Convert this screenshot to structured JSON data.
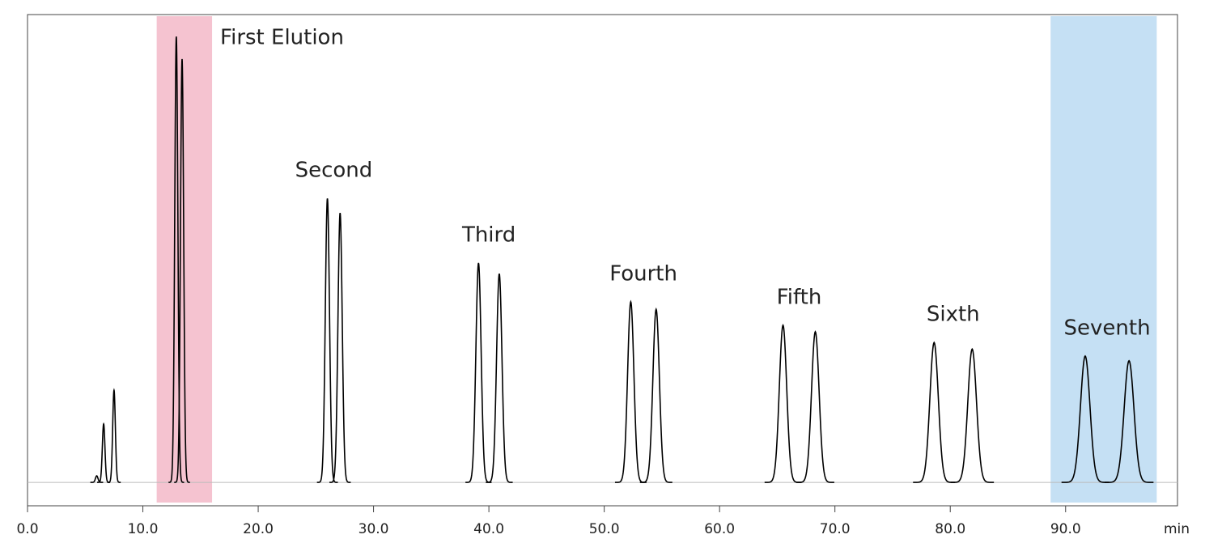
{
  "chart_data": {
    "type": "chromatogram",
    "x_label": "min",
    "xlim": [
      0,
      99.7
    ],
    "ylim": [
      -5,
      100
    ],
    "xticks": [
      {
        "value": 0,
        "label": "0.0"
      },
      {
        "value": 10,
        "label": "10.0"
      },
      {
        "value": 20,
        "label": "20.0"
      },
      {
        "value": 30,
        "label": "30.0"
      },
      {
        "value": 40,
        "label": "40.0"
      },
      {
        "value": 50,
        "label": "50.0"
      },
      {
        "value": 60,
        "label": "60.0"
      },
      {
        "value": 70,
        "label": "70.0"
      },
      {
        "value": 80,
        "label": "80.0"
      },
      {
        "value": 90,
        "label": "90.0"
      }
    ],
    "color": "#000000",
    "peaks": {
      "x": [
        6.0,
        6.6,
        7.5,
        12.9,
        13.4,
        26.0,
        27.1,
        39.1,
        40.9,
        52.3,
        54.5,
        65.5,
        68.3,
        78.6,
        81.9,
        91.7,
        95.5
      ],
      "values": [
        1.4,
        12.5,
        19.7,
        95.3,
        90.5,
        60.7,
        57.6,
        46.9,
        44.6,
        38.6,
        37.0,
        33.6,
        32.2,
        29.9,
        28.5,
        27.0,
        26.0
      ]
    },
    "annotations": [
      "First Elution",
      "Second",
      "Third",
      "Fourth",
      "Fifth",
      "Sixth",
      "Seventh"
    ],
    "highlights": [
      {
        "start": 11.2,
        "end": 16.0,
        "color": "#f5c3d0"
      },
      {
        "start": 88.7,
        "end": 97.9,
        "color": "#c5e0f4"
      }
    ]
  }
}
